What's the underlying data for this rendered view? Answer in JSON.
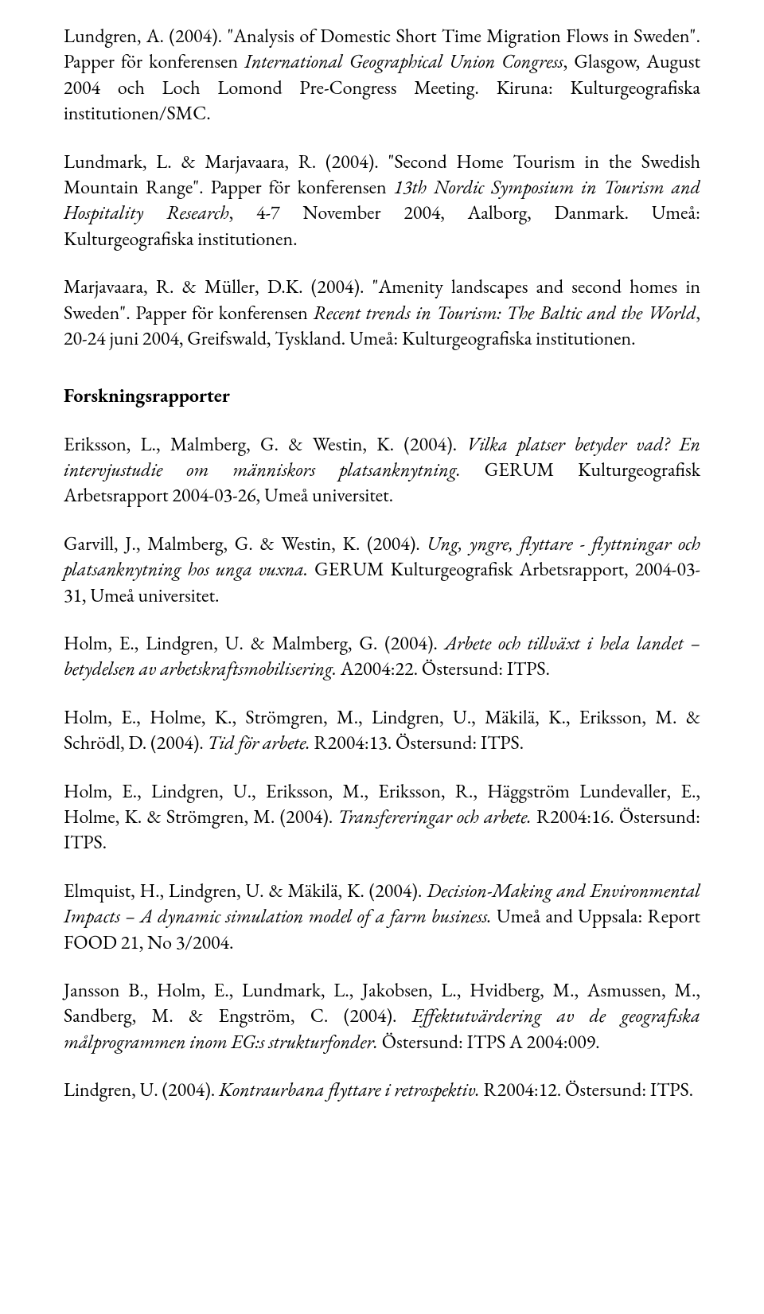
{
  "paragraphs": [
    {
      "segments": [
        {
          "text": "Lundgren, A. (2004). \"Analysis of Domestic Short Time Migration Flows in Sweden\". Papper för konferensen ",
          "style": "normal"
        },
        {
          "text": "International Geographical Union Congress",
          "style": "italic"
        },
        {
          "text": ", Glasgow, August 2004 och Loch Lomond Pre-Congress Meeting. Kiruna: Kulturgeografiska institutionen/SMC.",
          "style": "normal"
        }
      ]
    },
    {
      "segments": [
        {
          "text": "Lundmark, L. & Marjavaara, R. (2004). \"Second Home Tourism in the Swedish Mountain Range\". Papper för konferensen ",
          "style": "normal"
        },
        {
          "text": "13th Nordic Symposium in Tourism and Hospitality Research",
          "style": "italic"
        },
        {
          "text": ", 4-7 November 2004, Aalborg, Danmark. Umeå: Kulturgeografiska institutionen.",
          "style": "normal"
        }
      ]
    },
    {
      "segments": [
        {
          "text": "Marjavaara, R. & Müller, D.K. (2004). \"Amenity landscapes and second homes in Sweden\". Papper för konferensen ",
          "style": "normal"
        },
        {
          "text": "Recent trends in Tourism: The Baltic and the World",
          "style": "italic"
        },
        {
          "text": ", 20-24 juni 2004, Greifswald, Tyskland. Umeå: Kulturgeografiska institutionen.",
          "style": "normal"
        }
      ]
    }
  ],
  "heading": "Forskningsrapporter",
  "reports": [
    {
      "segments": [
        {
          "text": "Eriksson, L., Malmberg, G. & Westin, K. (2004). ",
          "style": "normal"
        },
        {
          "text": "Vilka platser betyder vad? En intervjustudie om människors platsanknytning.",
          "style": "italic"
        },
        {
          "text": " GERUM Kulturgeografisk Arbetsrapport 2004-03-26, Umeå universitet.",
          "style": "normal"
        }
      ]
    },
    {
      "segments": [
        {
          "text": "Garvill, J., Malmberg, G. & Westin, K. (2004). ",
          "style": "normal"
        },
        {
          "text": "Ung, yngre, flyttare - flyttningar och platsanknytning hos unga vuxna.",
          "style": "italic"
        },
        {
          "text": " GERUM Kulturgeografisk Arbetsrapport, 2004-03-31, Umeå universitet.",
          "style": "normal"
        }
      ]
    },
    {
      "segments": [
        {
          "text": "Holm, E., Lindgren, U. & Malmberg, G. (2004). ",
          "style": "normal"
        },
        {
          "text": "Arbete och tillväxt i hela landet – betydelsen av arbetskraftsmobilisering.",
          "style": "italic"
        },
        {
          "text": " A2004:22. Östersund: ITPS.",
          "style": "normal"
        }
      ]
    },
    {
      "segments": [
        {
          "text": "Holm, E., Holme, K., Strömgren, M., Lindgren, U., Mäkilä, K., Eriksson, M. & Schrödl, D. (2004). ",
          "style": "normal"
        },
        {
          "text": "Tid för arbete.",
          "style": "italic"
        },
        {
          "text": " R2004:13. Östersund: ITPS.",
          "style": "normal"
        }
      ]
    },
    {
      "segments": [
        {
          "text": "Holm, E., Lindgren, U., Eriksson, M., Eriksson, R., Häggström Lundevaller, E., Holme, K. & Strömgren, M. (2004). ",
          "style": "normal"
        },
        {
          "text": "Transfereringar och arbete.",
          "style": "italic"
        },
        {
          "text": " R2004:16. Östersund: ITPS.",
          "style": "normal"
        }
      ]
    },
    {
      "segments": [
        {
          "text": "Elmquist, H., Lindgren, U. & Mäkilä, K. (2004). ",
          "style": "normal"
        },
        {
          "text": "Decision-Making and Environmental Impacts – A dynamic simulation model of a farm business.",
          "style": "italic"
        },
        {
          "text": " Umeå and Uppsala: Report FOOD 21, No 3/2004.",
          "style": "normal"
        }
      ]
    },
    {
      "segments": [
        {
          "text": "Jansson B., Holm, E., Lundmark, L., Jakobsen, L., Hvidberg, M., Asmussen, M., Sandberg, M. & Engström, C. (2004). ",
          "style": "normal"
        },
        {
          "text": "Effektutvärdering av de geografiska målprogrammen inom EG:s strukturfonder.",
          "style": "italic"
        },
        {
          "text": " Östersund: ITPS A 2004:009.",
          "style": "normal"
        }
      ]
    },
    {
      "segments": [
        {
          "text": "Lindgren, U. (2004). ",
          "style": "normal"
        },
        {
          "text": "Kontraurbana flyttare i retrospektiv.",
          "style": "italic"
        },
        {
          "text": " R2004:12. Östersund: ITPS.",
          "style": "normal"
        }
      ]
    }
  ]
}
